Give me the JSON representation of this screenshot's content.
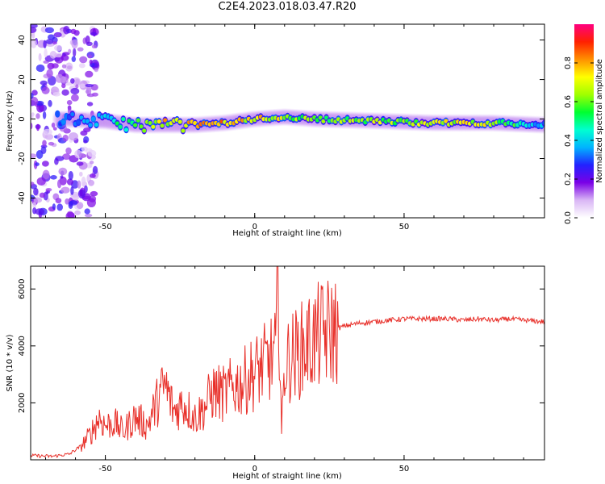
{
  "page": {
    "title": "C2E4.2023.018.03.47.R20"
  },
  "colors": {
    "snr_line": "#e8302a",
    "frame": "#000000"
  },
  "chart_data": [
    {
      "type": "heatmap",
      "title": "C2E4.2023.018.03.47.R20",
      "xlabel": "Height of straight line (km)",
      "ylabel": "Frequency (Hz)",
      "xlim": [
        -75,
        97
      ],
      "ylim": [
        -50,
        48
      ],
      "xticks": [
        -50,
        0,
        50
      ],
      "yticks": [
        -40,
        -20,
        0,
        20,
        40
      ],
      "colorbar": {
        "label": "Normalized spectral amplitude",
        "range": [
          0.0,
          1.0
        ],
        "ticks": [
          "0.0",
          "0.2",
          "0.4",
          "0.6",
          "0.8"
        ],
        "colormap": [
          "#ffffff",
          "#d9b6f5",
          "#7a00e6",
          "#2222ff",
          "#00b4ff",
          "#00ffd0",
          "#00ff30",
          "#a0ff00",
          "#ffff00",
          "#ff9000",
          "#ff2000",
          "#ff0080"
        ]
      },
      "ridge": {
        "description_points_x": [
          -65,
          -50,
          -40,
          -30,
          -20,
          -10,
          0,
          10,
          20,
          40,
          60,
          80,
          97
        ],
        "center_frequency": [
          0,
          -1,
          -3,
          -3,
          -3,
          -2,
          0,
          1,
          0,
          -1,
          -2,
          -2,
          -3
        ],
        "peak_amplitude": [
          0.3,
          0.45,
          0.55,
          0.75,
          0.8,
          0.85,
          0.75,
          0.7,
          0.6,
          0.65,
          0.7,
          0.7,
          0.35
        ]
      }
    },
    {
      "type": "line",
      "xlabel": "Height of straight line (km)",
      "ylabel": "SNR (10 * v/v)",
      "xlim": [
        -75,
        97
      ],
      "ylim": [
        0,
        6800
      ],
      "xticks": [
        -50,
        0,
        50
      ],
      "yticks": [
        2000,
        4000,
        6000
      ],
      "series": [
        {
          "x": [
            -75,
            -68,
            -62,
            -58,
            -55,
            -52,
            -50,
            -47,
            -44,
            -40,
            -36,
            -32,
            -30,
            -27,
            -24,
            -20,
            -17,
            -14,
            -10,
            -7,
            -4,
            -1,
            2,
            5,
            7,
            8,
            9,
            10,
            12,
            15,
            18,
            21,
            25,
            30,
            35,
            40,
            45,
            50,
            55,
            60,
            65,
            70,
            75,
            80,
            85,
            90,
            97
          ],
          "y": [
            150,
            120,
            200,
            500,
            900,
            1500,
            1200,
            1300,
            1000,
            1500,
            1200,
            2200,
            2600,
            1700,
            2000,
            1500,
            1800,
            2400,
            2300,
            2600,
            2700,
            3000,
            3200,
            3500,
            3700,
            6500,
            900,
            3300,
            3600,
            3800,
            4100,
            4300,
            4500,
            4700,
            4800,
            4850,
            4900,
            4950,
            4950,
            4950,
            4950,
            4900,
            4950,
            4900,
            4950,
            4900,
            4850
          ]
        }
      ]
    }
  ]
}
